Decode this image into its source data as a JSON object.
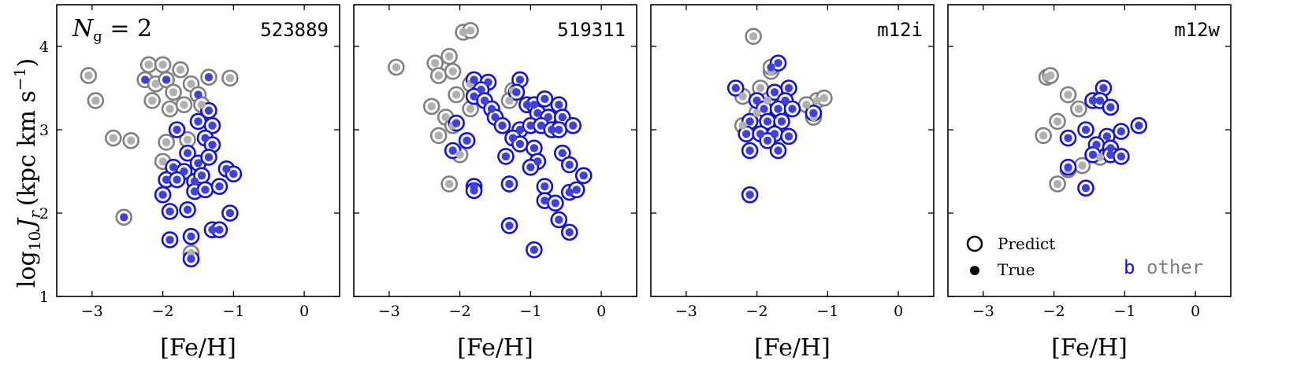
{
  "colors": {
    "group_b": "#1010e8",
    "group_b_fill": "#4040e0",
    "other": "#808080",
    "other_fill": "#b0b0b0"
  },
  "shared": {
    "xlabel": "[Fe/H]",
    "ylabel_main": "log",
    "ylabel_sub": "10",
    "ylabel_var": "J",
    "ylabel_var_sub": "r",
    "ylabel_units": "(kpc km s",
    "ylabel_exp": "−1",
    "ylabel_close": ")",
    "xlim": [
      -3.5,
      0.5
    ],
    "ylim": [
      1,
      4.5
    ],
    "xticks": [
      -3,
      -2,
      -1,
      0
    ],
    "xticklabels": [
      "−3",
      "−2",
      "−1",
      "0"
    ],
    "yticks": [
      1,
      2,
      3,
      4
    ],
    "yticklabels": [
      "1",
      "2",
      "3",
      "4"
    ],
    "annotation_left": "N",
    "annotation_sub": "g",
    "annotation_right": " = 2"
  },
  "legend": {
    "predict": "Predict",
    "true": "True",
    "group_b": "b",
    "group_other": "other"
  },
  "chart_data": [
    {
      "type": "scatter",
      "title": "523889",
      "points": [
        {
          "x": -3.05,
          "y": 3.65,
          "p": "o",
          "t": "o"
        },
        {
          "x": -2.95,
          "y": 3.35,
          "p": "o",
          "t": "o"
        },
        {
          "x": -2.7,
          "y": 2.9,
          "p": "o",
          "t": "o"
        },
        {
          "x": -2.45,
          "y": 2.87,
          "p": "o",
          "t": "o"
        },
        {
          "x": -2.55,
          "y": 1.95,
          "p": "o",
          "t": "b"
        },
        {
          "x": -2.25,
          "y": 3.6,
          "p": "o",
          "t": "b"
        },
        {
          "x": -2.2,
          "y": 3.78,
          "p": "o",
          "t": "o"
        },
        {
          "x": -2.1,
          "y": 3.55,
          "p": "o",
          "t": "o"
        },
        {
          "x": -2.0,
          "y": 3.78,
          "p": "o",
          "t": "o"
        },
        {
          "x": -1.95,
          "y": 3.6,
          "p": "o",
          "t": "b"
        },
        {
          "x": -1.85,
          "y": 3.45,
          "p": "o",
          "t": "o"
        },
        {
          "x": -1.75,
          "y": 3.72,
          "p": "o",
          "t": "o"
        },
        {
          "x": -1.6,
          "y": 3.55,
          "p": "o",
          "t": "o"
        },
        {
          "x": -1.5,
          "y": 3.42,
          "p": "o",
          "t": "b"
        },
        {
          "x": -1.35,
          "y": 3.63,
          "p": "o",
          "t": "b"
        },
        {
          "x": -1.05,
          "y": 3.62,
          "p": "o",
          "t": "o"
        },
        {
          "x": -2.15,
          "y": 3.35,
          "p": "o",
          "t": "o"
        },
        {
          "x": -1.9,
          "y": 3.25,
          "p": "o",
          "t": "o"
        },
        {
          "x": -1.7,
          "y": 3.3,
          "p": "o",
          "t": "o"
        },
        {
          "x": -1.45,
          "y": 3.3,
          "p": "o",
          "t": "o"
        },
        {
          "x": -1.95,
          "y": 2.85,
          "p": "o",
          "t": "o"
        },
        {
          "x": -2.0,
          "y": 2.62,
          "p": "o",
          "t": "o"
        },
        {
          "x": -1.65,
          "y": 2.88,
          "p": "o",
          "t": "o"
        },
        {
          "x": -1.6,
          "y": 1.52,
          "p": "o",
          "t": "o"
        },
        {
          "x": -1.8,
          "y": 3.0,
          "p": "b",
          "t": "b"
        },
        {
          "x": -1.5,
          "y": 3.1,
          "p": "b",
          "t": "b"
        },
        {
          "x": -1.35,
          "y": 3.23,
          "p": "b",
          "t": "b"
        },
        {
          "x": -1.3,
          "y": 3.05,
          "p": "b",
          "t": "b"
        },
        {
          "x": -1.4,
          "y": 2.9,
          "p": "b",
          "t": "b"
        },
        {
          "x": -1.3,
          "y": 2.82,
          "p": "b",
          "t": "b"
        },
        {
          "x": -1.65,
          "y": 2.72,
          "p": "b",
          "t": "b"
        },
        {
          "x": -1.5,
          "y": 2.6,
          "p": "b",
          "t": "b"
        },
        {
          "x": -1.35,
          "y": 2.67,
          "p": "b",
          "t": "b"
        },
        {
          "x": -1.85,
          "y": 2.55,
          "p": "b",
          "t": "b"
        },
        {
          "x": -1.7,
          "y": 2.5,
          "p": "b",
          "t": "b"
        },
        {
          "x": -1.55,
          "y": 2.38,
          "p": "b",
          "t": "b"
        },
        {
          "x": -1.45,
          "y": 2.45,
          "p": "b",
          "t": "b"
        },
        {
          "x": -1.95,
          "y": 2.4,
          "p": "b",
          "t": "b"
        },
        {
          "x": -1.8,
          "y": 2.4,
          "p": "b",
          "t": "b"
        },
        {
          "x": -1.55,
          "y": 2.26,
          "p": "b",
          "t": "b"
        },
        {
          "x": -1.4,
          "y": 2.28,
          "p": "b",
          "t": "b"
        },
        {
          "x": -1.2,
          "y": 2.32,
          "p": "b",
          "t": "b"
        },
        {
          "x": -1.1,
          "y": 2.53,
          "p": "b",
          "t": "b"
        },
        {
          "x": -1.0,
          "y": 2.47,
          "p": "b",
          "t": "b"
        },
        {
          "x": -2.0,
          "y": 2.22,
          "p": "b",
          "t": "b"
        },
        {
          "x": -1.9,
          "y": 2.02,
          "p": "b",
          "t": "b"
        },
        {
          "x": -1.65,
          "y": 2.04,
          "p": "b",
          "t": "b"
        },
        {
          "x": -1.05,
          "y": 2.0,
          "p": "b",
          "t": "b"
        },
        {
          "x": -1.3,
          "y": 1.8,
          "p": "b",
          "t": "b"
        },
        {
          "x": -1.2,
          "y": 1.8,
          "p": "b",
          "t": "b"
        },
        {
          "x": -1.9,
          "y": 1.68,
          "p": "b",
          "t": "b"
        },
        {
          "x": -1.6,
          "y": 1.72,
          "p": "b",
          "t": "b"
        },
        {
          "x": -1.6,
          "y": 1.45,
          "p": "b",
          "t": "b"
        }
      ]
    },
    {
      "type": "scatter",
      "title": "519311",
      "points": [
        {
          "x": -2.9,
          "y": 3.75,
          "p": "o",
          "t": "o"
        },
        {
          "x": -2.35,
          "y": 3.8,
          "p": "o",
          "t": "o"
        },
        {
          "x": -2.3,
          "y": 3.65,
          "p": "o",
          "t": "o"
        },
        {
          "x": -2.15,
          "y": 3.88,
          "p": "o",
          "t": "o"
        },
        {
          "x": -2.1,
          "y": 3.7,
          "p": "o",
          "t": "o"
        },
        {
          "x": -1.95,
          "y": 4.17,
          "p": "o",
          "t": "o"
        },
        {
          "x": -1.85,
          "y": 4.19,
          "p": "o",
          "t": "o"
        },
        {
          "x": -1.85,
          "y": 3.55,
          "p": "o",
          "t": "o"
        },
        {
          "x": -2.05,
          "y": 3.42,
          "p": "o",
          "t": "o"
        },
        {
          "x": -2.4,
          "y": 3.28,
          "p": "o",
          "t": "o"
        },
        {
          "x": -2.2,
          "y": 3.15,
          "p": "o",
          "t": "o"
        },
        {
          "x": -2.1,
          "y": 3.05,
          "p": "o",
          "t": "o"
        },
        {
          "x": -2.3,
          "y": 2.93,
          "p": "o",
          "t": "o"
        },
        {
          "x": -2.0,
          "y": 2.7,
          "p": "o",
          "t": "o"
        },
        {
          "x": -2.15,
          "y": 2.35,
          "p": "o",
          "t": "o"
        },
        {
          "x": -1.25,
          "y": 3.47,
          "p": "o",
          "t": "o"
        },
        {
          "x": -1.3,
          "y": 3.35,
          "p": "o",
          "t": "o"
        },
        {
          "x": -1.85,
          "y": 3.25,
          "p": "o",
          "t": "o"
        },
        {
          "x": -1.8,
          "y": 3.6,
          "p": "b",
          "t": "b"
        },
        {
          "x": -1.6,
          "y": 3.57,
          "p": "b",
          "t": "b"
        },
        {
          "x": -1.7,
          "y": 3.48,
          "p": "b",
          "t": "b"
        },
        {
          "x": -1.8,
          "y": 3.4,
          "p": "b",
          "t": "b"
        },
        {
          "x": -1.65,
          "y": 3.35,
          "p": "b",
          "t": "b"
        },
        {
          "x": -1.55,
          "y": 3.25,
          "p": "b",
          "t": "b"
        },
        {
          "x": -1.5,
          "y": 3.15,
          "p": "b",
          "t": "b"
        },
        {
          "x": -1.4,
          "y": 3.05,
          "p": "b",
          "t": "b"
        },
        {
          "x": -1.15,
          "y": 3.6,
          "p": "b",
          "t": "b"
        },
        {
          "x": -1.2,
          "y": 3.45,
          "p": "b",
          "t": "b"
        },
        {
          "x": -1.05,
          "y": 3.3,
          "p": "b",
          "t": "b"
        },
        {
          "x": -0.95,
          "y": 3.3,
          "p": "b",
          "t": "b"
        },
        {
          "x": -0.8,
          "y": 3.37,
          "p": "b",
          "t": "b"
        },
        {
          "x": -0.6,
          "y": 3.3,
          "p": "b",
          "t": "b"
        },
        {
          "x": -0.9,
          "y": 3.2,
          "p": "b",
          "t": "b"
        },
        {
          "x": -0.75,
          "y": 3.15,
          "p": "b",
          "t": "b"
        },
        {
          "x": -0.55,
          "y": 3.15,
          "p": "b",
          "t": "b"
        },
        {
          "x": -1.15,
          "y": 3.0,
          "p": "b",
          "t": "b"
        },
        {
          "x": -1.0,
          "y": 3.05,
          "p": "b",
          "t": "b"
        },
        {
          "x": -0.85,
          "y": 3.05,
          "p": "b",
          "t": "b"
        },
        {
          "x": -0.7,
          "y": 3.0,
          "p": "b",
          "t": "b"
        },
        {
          "x": -0.6,
          "y": 3.0,
          "p": "b",
          "t": "b"
        },
        {
          "x": -0.4,
          "y": 3.05,
          "p": "b",
          "t": "b"
        },
        {
          "x": -1.25,
          "y": 2.9,
          "p": "b",
          "t": "b"
        },
        {
          "x": -1.15,
          "y": 2.83,
          "p": "b",
          "t": "b"
        },
        {
          "x": -2.05,
          "y": 3.08,
          "p": "b",
          "t": "b"
        },
        {
          "x": -1.9,
          "y": 2.87,
          "p": "b",
          "t": "b"
        },
        {
          "x": -2.1,
          "y": 2.75,
          "p": "b",
          "t": "b"
        },
        {
          "x": -0.95,
          "y": 2.78,
          "p": "b",
          "t": "b"
        },
        {
          "x": -0.55,
          "y": 2.72,
          "p": "b",
          "t": "b"
        },
        {
          "x": -1.35,
          "y": 2.68,
          "p": "b",
          "t": "b"
        },
        {
          "x": -0.9,
          "y": 2.62,
          "p": "b",
          "t": "b"
        },
        {
          "x": -1.0,
          "y": 2.55,
          "p": "b",
          "t": "b"
        },
        {
          "x": -0.45,
          "y": 2.58,
          "p": "b",
          "t": "b"
        },
        {
          "x": -0.25,
          "y": 2.45,
          "p": "b",
          "t": "b"
        },
        {
          "x": -1.8,
          "y": 2.32,
          "p": "b",
          "t": "b"
        },
        {
          "x": -1.8,
          "y": 2.27,
          "p": "b",
          "t": "b"
        },
        {
          "x": -1.3,
          "y": 2.35,
          "p": "b",
          "t": "b"
        },
        {
          "x": -0.8,
          "y": 2.32,
          "p": "b",
          "t": "b"
        },
        {
          "x": -0.45,
          "y": 2.25,
          "p": "b",
          "t": "b"
        },
        {
          "x": -0.35,
          "y": 2.28,
          "p": "b",
          "t": "b"
        },
        {
          "x": -0.8,
          "y": 2.15,
          "p": "b",
          "t": "b"
        },
        {
          "x": -0.65,
          "y": 2.12,
          "p": "b",
          "t": "b"
        },
        {
          "x": -0.6,
          "y": 1.92,
          "p": "b",
          "t": "b"
        },
        {
          "x": -1.3,
          "y": 1.85,
          "p": "b",
          "t": "b"
        },
        {
          "x": -0.45,
          "y": 1.77,
          "p": "b",
          "t": "b"
        },
        {
          "x": -0.95,
          "y": 1.56,
          "p": "b",
          "t": "b"
        }
      ]
    },
    {
      "type": "scatter",
      "title": "m12i",
      "points": [
        {
          "x": -2.05,
          "y": 4.12,
          "p": "o",
          "t": "o"
        },
        {
          "x": -1.8,
          "y": 3.7,
          "p": "o",
          "t": "o"
        },
        {
          "x": -1.95,
          "y": 3.5,
          "p": "o",
          "t": "o"
        },
        {
          "x": -2.2,
          "y": 3.4,
          "p": "o",
          "t": "o"
        },
        {
          "x": -1.85,
          "y": 3.35,
          "p": "o",
          "t": "o"
        },
        {
          "x": -1.15,
          "y": 3.35,
          "p": "o",
          "t": "o"
        },
        {
          "x": -1.05,
          "y": 3.38,
          "p": "o",
          "t": "o"
        },
        {
          "x": -1.3,
          "y": 3.3,
          "p": "o",
          "t": "o"
        },
        {
          "x": -2.0,
          "y": 3.2,
          "p": "o",
          "t": "o"
        },
        {
          "x": -2.2,
          "y": 3.05,
          "p": "o",
          "t": "o"
        },
        {
          "x": -1.2,
          "y": 3.15,
          "p": "o",
          "t": "o"
        },
        {
          "x": -2.3,
          "y": 3.5,
          "p": "b",
          "t": "b"
        },
        {
          "x": -1.8,
          "y": 3.75,
          "p": "o",
          "t": "b"
        },
        {
          "x": -1.7,
          "y": 3.8,
          "p": "b",
          "t": "b"
        },
        {
          "x": -1.55,
          "y": 3.5,
          "p": "b",
          "t": "b"
        },
        {
          "x": -1.75,
          "y": 3.45,
          "p": "b",
          "t": "b"
        },
        {
          "x": -2.0,
          "y": 3.35,
          "p": "b",
          "t": "b"
        },
        {
          "x": -1.6,
          "y": 3.35,
          "p": "b",
          "t": "b"
        },
        {
          "x": -1.9,
          "y": 3.25,
          "p": "b",
          "t": "b"
        },
        {
          "x": -1.7,
          "y": 3.25,
          "p": "b",
          "t": "b"
        },
        {
          "x": -1.5,
          "y": 3.25,
          "p": "b",
          "t": "b"
        },
        {
          "x": -2.1,
          "y": 3.1,
          "p": "b",
          "t": "b"
        },
        {
          "x": -1.85,
          "y": 3.1,
          "p": "b",
          "t": "b"
        },
        {
          "x": -1.65,
          "y": 3.1,
          "p": "b",
          "t": "b"
        },
        {
          "x": -1.2,
          "y": 3.2,
          "p": "b",
          "t": "b"
        },
        {
          "x": -2.15,
          "y": 2.95,
          "p": "b",
          "t": "b"
        },
        {
          "x": -1.95,
          "y": 2.95,
          "p": "b",
          "t": "b"
        },
        {
          "x": -1.75,
          "y": 2.95,
          "p": "b",
          "t": "b"
        },
        {
          "x": -1.55,
          "y": 2.92,
          "p": "b",
          "t": "b"
        },
        {
          "x": -1.85,
          "y": 2.87,
          "p": "b",
          "t": "b"
        },
        {
          "x": -2.1,
          "y": 2.75,
          "p": "b",
          "t": "b"
        },
        {
          "x": -1.7,
          "y": 2.75,
          "p": "b",
          "t": "b"
        },
        {
          "x": -2.1,
          "y": 2.22,
          "p": "b",
          "t": "b"
        }
      ]
    },
    {
      "type": "scatter",
      "title": "m12w",
      "points": [
        {
          "x": -2.1,
          "y": 3.63,
          "p": "o",
          "t": "o"
        },
        {
          "x": -2.05,
          "y": 3.65,
          "p": "o",
          "t": "o"
        },
        {
          "x": -1.8,
          "y": 3.42,
          "p": "o",
          "t": "o"
        },
        {
          "x": -1.65,
          "y": 3.25,
          "p": "o",
          "t": "o"
        },
        {
          "x": -1.95,
          "y": 3.1,
          "p": "o",
          "t": "o"
        },
        {
          "x": -2.15,
          "y": 2.93,
          "p": "o",
          "t": "o"
        },
        {
          "x": -1.8,
          "y": 2.52,
          "p": "o",
          "t": "o"
        },
        {
          "x": -1.6,
          "y": 2.57,
          "p": "o",
          "t": "o"
        },
        {
          "x": -1.95,
          "y": 2.35,
          "p": "o",
          "t": "o"
        },
        {
          "x": -1.35,
          "y": 2.67,
          "p": "o",
          "t": "o"
        },
        {
          "x": -1.3,
          "y": 3.5,
          "p": "b",
          "t": "b"
        },
        {
          "x": -1.45,
          "y": 3.35,
          "p": "b",
          "t": "b"
        },
        {
          "x": -1.35,
          "y": 3.35,
          "p": "b",
          "t": "b"
        },
        {
          "x": -1.2,
          "y": 3.27,
          "p": "b",
          "t": "b"
        },
        {
          "x": -1.55,
          "y": 3.0,
          "p": "b",
          "t": "b"
        },
        {
          "x": -1.25,
          "y": 2.92,
          "p": "b",
          "t": "b"
        },
        {
          "x": -1.05,
          "y": 2.98,
          "p": "b",
          "t": "b"
        },
        {
          "x": -0.8,
          "y": 3.05,
          "p": "b",
          "t": "b"
        },
        {
          "x": -1.8,
          "y": 2.9,
          "p": "b",
          "t": "b"
        },
        {
          "x": -1.4,
          "y": 2.82,
          "p": "b",
          "t": "b"
        },
        {
          "x": -1.2,
          "y": 2.78,
          "p": "b",
          "t": "b"
        },
        {
          "x": -1.45,
          "y": 2.7,
          "p": "b",
          "t": "b"
        },
        {
          "x": -1.2,
          "y": 2.7,
          "p": "b",
          "t": "b"
        },
        {
          "x": -1.05,
          "y": 2.68,
          "p": "b",
          "t": "b"
        },
        {
          "x": -1.8,
          "y": 2.55,
          "p": "b",
          "t": "b"
        },
        {
          "x": -1.55,
          "y": 2.3,
          "p": "b",
          "t": "b"
        }
      ]
    }
  ]
}
